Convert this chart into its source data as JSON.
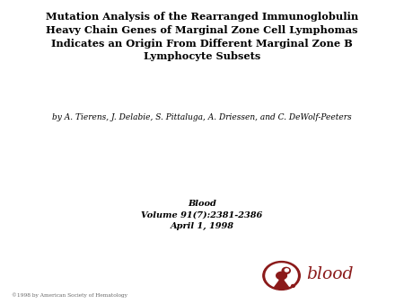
{
  "title_line1": "Mutation Analysis of the Rearranged Immunoglobulin",
  "title_line2": "Heavy Chain Genes of Marginal Zone Cell Lymphomas",
  "title_line3": "Indicates an Origin From Different Marginal Zone B",
  "title_line4": "Lymphocyte Subsets",
  "authors": "by A. Tierens, J. Delabie, S. Pittaluga, A. Driessen, and C. DeWolf-Peeters",
  "journal": "Blood",
  "volume": "Volume 91(7):2381-2386",
  "date": "April 1, 1998",
  "copyright": "©1998 by American Society of Hematology",
  "bg_color": "#ffffff",
  "title_color": "#000000",
  "author_color": "#000000",
  "journal_color": "#000000",
  "blood_text_color": "#8b1a1a",
  "blood_icon_color": "#8b1a1a",
  "title_fontsize": 8.2,
  "author_fontsize": 6.5,
  "journal_fontsize": 7.0,
  "copyright_fontsize": 4.2,
  "blood_fontsize": 13.5
}
